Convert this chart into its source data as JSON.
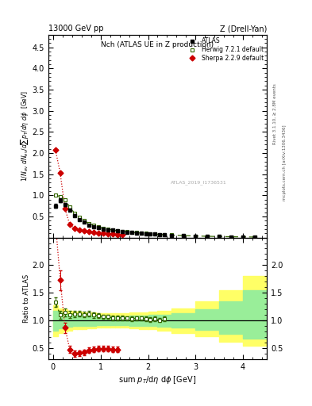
{
  "title_left": "13000 GeV pp",
  "title_right": "Z (Drell-Yan)",
  "plot_title": "Nch (ATLAS UE in Z production)",
  "xlabel": "sum $p_T$/d$\\eta$ d$\\phi$ [GeV]",
  "ylabel_main": "1/N$_{ev}$ dN$_{ev}$/dsum p$_T$/d$\\eta$ d$\\phi$  [GeV]",
  "ylabel_ratio": "Ratio to ATLAS",
  "watermark": "ATLAS_2019_I1736531",
  "right_label_top": "Rivet 3.1.10, ≥ 2.8M events",
  "right_label_bot": "mcplots.cern.ch [arXiv:1306.3436]",
  "atlas_x": [
    0.05,
    0.15,
    0.25,
    0.35,
    0.45,
    0.55,
    0.65,
    0.75,
    0.85,
    0.95,
    1.05,
    1.15,
    1.25,
    1.35,
    1.45,
    1.55,
    1.65,
    1.75,
    1.85,
    1.95,
    2.05,
    2.15,
    2.25,
    2.35,
    2.5,
    2.75,
    3.0,
    3.25,
    3.5,
    3.75,
    4.0,
    4.25
  ],
  "atlas_y": [
    0.75,
    0.88,
    0.78,
    0.65,
    0.52,
    0.43,
    0.36,
    0.3,
    0.26,
    0.23,
    0.205,
    0.185,
    0.17,
    0.155,
    0.14,
    0.13,
    0.12,
    0.11,
    0.1,
    0.092,
    0.085,
    0.078,
    0.072,
    0.065,
    0.055,
    0.043,
    0.035,
    0.028,
    0.022,
    0.018,
    0.014,
    0.011
  ],
  "atlas_yerr": [
    0.04,
    0.04,
    0.04,
    0.03,
    0.025,
    0.02,
    0.018,
    0.015,
    0.013,
    0.012,
    0.01,
    0.009,
    0.008,
    0.008,
    0.007,
    0.007,
    0.006,
    0.006,
    0.005,
    0.005,
    0.004,
    0.004,
    0.004,
    0.004,
    0.003,
    0.003,
    0.002,
    0.002,
    0.002,
    0.001,
    0.001,
    0.001
  ],
  "herwig_x": [
    0.05,
    0.15,
    0.25,
    0.35,
    0.45,
    0.55,
    0.65,
    0.75,
    0.85,
    0.95,
    1.05,
    1.15,
    1.25,
    1.35,
    1.45,
    1.55,
    1.65,
    1.75,
    1.85,
    1.95,
    2.05,
    2.15,
    2.25,
    2.35,
    2.5,
    2.75,
    3.0,
    3.25,
    3.5,
    3.75,
    4.0,
    4.25
  ],
  "herwig_y": [
    1.0,
    0.97,
    0.9,
    0.72,
    0.58,
    0.48,
    0.4,
    0.335,
    0.285,
    0.25,
    0.22,
    0.198,
    0.178,
    0.162,
    0.147,
    0.135,
    0.124,
    0.114,
    0.104,
    0.095,
    0.087,
    0.08,
    0.073,
    0.067,
    0.057,
    0.045,
    0.036,
    0.029,
    0.023,
    0.018,
    0.014,
    0.011
  ],
  "sherpa_x": [
    0.05,
    0.15,
    0.25,
    0.35,
    0.45,
    0.55,
    0.65,
    0.75,
    0.85,
    0.95,
    1.05,
    1.15,
    1.25,
    1.35,
    1.45
  ],
  "sherpa_y": [
    2.07,
    1.52,
    0.68,
    0.31,
    0.21,
    0.175,
    0.155,
    0.138,
    0.125,
    0.112,
    0.1,
    0.09,
    0.082,
    0.075,
    0.068
  ],
  "herwig_ratio_x": [
    0.05,
    0.15,
    0.25,
    0.35,
    0.45,
    0.55,
    0.65,
    0.75,
    0.85,
    0.95,
    1.05,
    1.15,
    1.25,
    1.35,
    1.45,
    1.55,
    1.65,
    1.75,
    1.85,
    1.95,
    2.05,
    2.15,
    2.25,
    2.35
  ],
  "herwig_ratio_y": [
    1.33,
    1.1,
    1.15,
    1.11,
    1.12,
    1.12,
    1.11,
    1.12,
    1.1,
    1.09,
    1.07,
    1.07,
    1.05,
    1.05,
    1.05,
    1.04,
    1.03,
    1.04,
    1.04,
    1.03,
    1.02,
    1.03,
    1.01,
    1.03
  ],
  "herwig_ratio_yerr": [
    0.09,
    0.07,
    0.07,
    0.06,
    0.06,
    0.05,
    0.05,
    0.05,
    0.05,
    0.04,
    0.04,
    0.04,
    0.04,
    0.04,
    0.04,
    0.04,
    0.04,
    0.04,
    0.04,
    0.04,
    0.04,
    0.04,
    0.04,
    0.04
  ],
  "sherpa_ratio_x": [
    0.05,
    0.15,
    0.25,
    0.35,
    0.45,
    0.55,
    0.65,
    0.75,
    0.85,
    0.95,
    1.05,
    1.15,
    1.25,
    1.35
  ],
  "sherpa_ratio_y": [
    2.76,
    1.73,
    0.87,
    0.48,
    0.4,
    0.41,
    0.43,
    0.46,
    0.48,
    0.49,
    0.49,
    0.49,
    0.48,
    0.48
  ],
  "sherpa_ratio_yerr": [
    0.25,
    0.18,
    0.09,
    0.07,
    0.06,
    0.05,
    0.05,
    0.05,
    0.05,
    0.05,
    0.05,
    0.05,
    0.05,
    0.05
  ],
  "band_edges": [
    0.0,
    0.1,
    0.2,
    0.3,
    0.4,
    0.5,
    0.6,
    0.7,
    0.8,
    0.9,
    1.0,
    1.1,
    1.2,
    1.3,
    1.4,
    1.5,
    1.6,
    1.8,
    2.0,
    2.2,
    2.5,
    3.0,
    3.5,
    4.0,
    4.5
  ],
  "yellow_low": [
    0.72,
    0.78,
    0.8,
    0.82,
    0.84,
    0.84,
    0.85,
    0.86,
    0.86,
    0.87,
    0.87,
    0.87,
    0.87,
    0.87,
    0.87,
    0.87,
    0.86,
    0.85,
    0.84,
    0.82,
    0.78,
    0.72,
    0.62,
    0.55
  ],
  "yellow_high": [
    1.28,
    1.22,
    1.2,
    1.18,
    1.16,
    1.16,
    1.15,
    1.14,
    1.14,
    1.13,
    1.13,
    1.13,
    1.13,
    1.13,
    1.13,
    1.13,
    1.14,
    1.15,
    1.16,
    1.18,
    1.22,
    1.35,
    1.55,
    1.8
  ],
  "green_low": [
    0.82,
    0.86,
    0.88,
    0.89,
    0.9,
    0.9,
    0.91,
    0.91,
    0.91,
    0.92,
    0.92,
    0.92,
    0.92,
    0.92,
    0.92,
    0.92,
    0.91,
    0.91,
    0.9,
    0.89,
    0.87,
    0.83,
    0.76,
    0.68
  ],
  "green_high": [
    1.18,
    1.14,
    1.12,
    1.11,
    1.1,
    1.1,
    1.09,
    1.09,
    1.09,
    1.08,
    1.08,
    1.08,
    1.08,
    1.08,
    1.08,
    1.08,
    1.09,
    1.09,
    1.1,
    1.11,
    1.13,
    1.2,
    1.35,
    1.55
  ],
  "xlim": [
    -0.1,
    4.5
  ],
  "ylim_main": [
    0.0,
    4.8
  ],
  "ylim_ratio": [
    0.3,
    2.5
  ],
  "yticks_main": [
    0.5,
    1.0,
    1.5,
    2.0,
    2.5,
    3.0,
    3.5,
    4.0,
    4.5
  ],
  "yticks_ratio": [
    0.5,
    1.0,
    1.5,
    2.0
  ],
  "color_atlas": "#000000",
  "color_herwig": "#336600",
  "color_sherpa": "#cc0000",
  "color_yellow": "#ffff66",
  "color_green": "#99ee99"
}
